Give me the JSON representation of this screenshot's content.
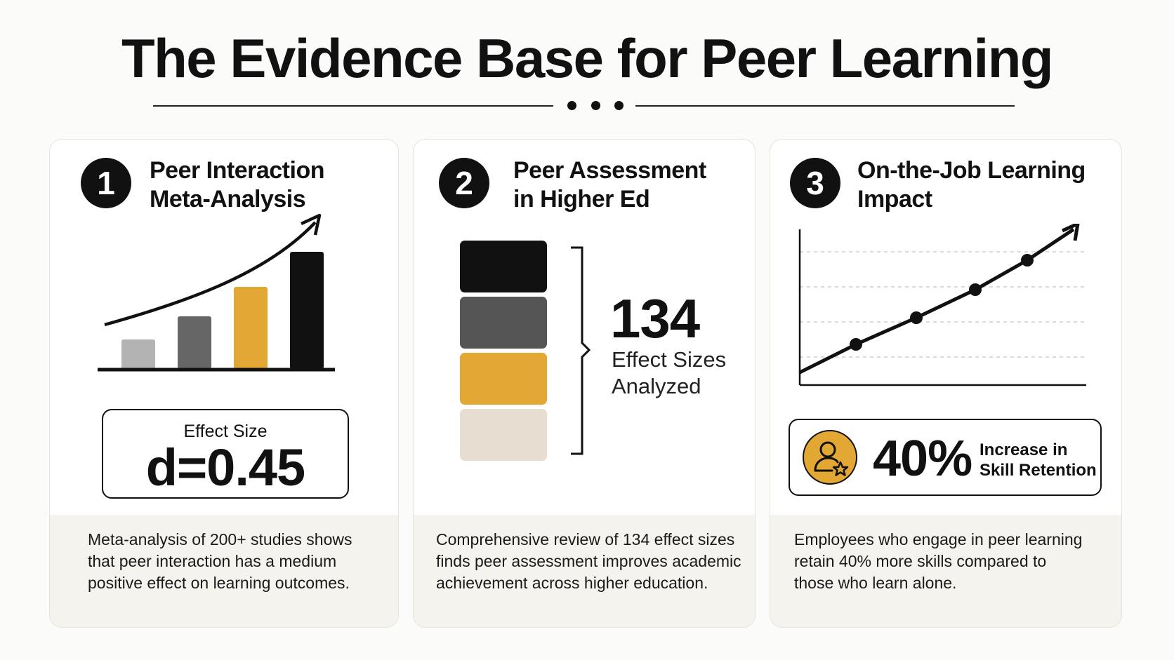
{
  "title": "The Evidence Base for Peer Learning",
  "colors": {
    "accent": "#e3a834",
    "dark": "#111111",
    "gray": "#666666",
    "light_gray": "#b3b3b3",
    "beige": "#e7ddd0",
    "footer_bg": "#f5f3ee"
  },
  "cards": [
    {
      "number": "1",
      "title_line1": "Peer Interaction",
      "title_line2": "Meta-Analysis",
      "chart_icon": "rising-bar-chart-icon",
      "effect_label": "Effect Size",
      "effect_value": "d=0.45",
      "description_line1": "Meta-analysis of 200+ studies shows",
      "description_line2": "that peer interaction has a medium",
      "description_line3": "positive effect on learning outcomes."
    },
    {
      "number": "2",
      "title_line1": "Peer Assessment",
      "title_line2": "in Higher Ed",
      "stat_number": "134",
      "stat_label_line1": "Effect Sizes",
      "stat_label_line2": "Analyzed",
      "description_line1": "Comprehensive review of 134 effect sizes",
      "description_line2": "finds peer assessment improves academic",
      "description_line3": "achievement across higher education."
    },
    {
      "number": "3",
      "title_line1": "On-the-Job Learning",
      "title_line2": "Impact",
      "chart_icon": "rising-line-chart-icon",
      "stat_icon": "person-star-icon",
      "stat_value": "40%",
      "stat_label_line1": "Increase in",
      "stat_label_line2": "Skill Retention",
      "description_line1": "Employees who engage in peer learning",
      "description_line2": "retain 40% more skills compared to",
      "description_line3": "those who learn alone."
    }
  ]
}
